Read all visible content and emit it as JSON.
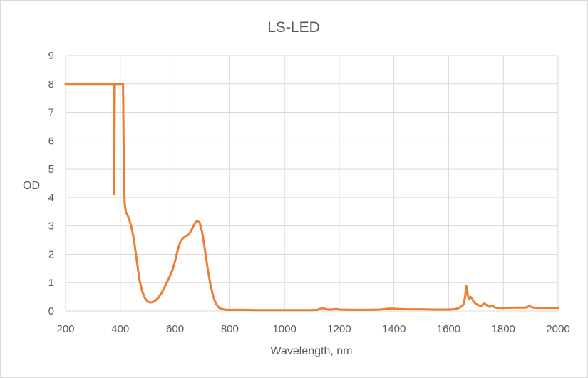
{
  "chart_data": {
    "type": "line",
    "title": "LS-LED",
    "xlabel": "Wavelength, nm",
    "ylabel": "OD",
    "xlim": [
      200,
      2000
    ],
    "ylim": [
      0,
      9
    ],
    "x_ticks": [
      200,
      400,
      600,
      800,
      1000,
      1200,
      1400,
      1600,
      1800,
      2000
    ],
    "y_ticks": [
      0,
      1,
      2,
      3,
      4,
      5,
      6,
      7,
      8,
      9
    ],
    "grid": true,
    "legend": "none",
    "line_color": "#ED7D31",
    "grid_color": "#D9D9D9",
    "series": [
      {
        "x": [
          200,
          370,
          375,
          376,
          377,
          378,
          379,
          380,
          381,
          383,
          385,
          390,
          400,
          405,
          408,
          410,
          412,
          414,
          416,
          420,
          430,
          440,
          450,
          460,
          470,
          480,
          490,
          500,
          510,
          520,
          530,
          540,
          550,
          560,
          570,
          580,
          590,
          600,
          610,
          620,
          630,
          640,
          650,
          660,
          670,
          680,
          690,
          700,
          710,
          720,
          730,
          740,
          750,
          760,
          770,
          780,
          790,
          800,
          820,
          850,
          900,
          950,
          1000,
          1050,
          1100,
          1120,
          1130,
          1140,
          1150,
          1160,
          1170,
          1180,
          1190,
          1200,
          1250,
          1300,
          1350,
          1380,
          1400,
          1420,
          1450,
          1500,
          1550,
          1600,
          1620,
          1630,
          1640,
          1650,
          1655,
          1660,
          1665,
          1668,
          1670,
          1675,
          1680,
          1685,
          1690,
          1695,
          1700,
          1710,
          1720,
          1730,
          1740,
          1750,
          1760,
          1770,
          1780,
          1800,
          1850,
          1880,
          1890,
          1895,
          1900,
          1910,
          1920,
          1950,
          2000
        ],
        "y": [
          8,
          8,
          8,
          7.9,
          6.5,
          4.1,
          6.5,
          7.9,
          8,
          8,
          8,
          8,
          8,
          8,
          8,
          8,
          6.0,
          4.5,
          3.8,
          3.5,
          3.3,
          3.0,
          2.5,
          1.8,
          1.1,
          0.7,
          0.45,
          0.33,
          0.3,
          0.32,
          0.38,
          0.48,
          0.62,
          0.8,
          1.0,
          1.2,
          1.42,
          1.75,
          2.15,
          2.45,
          2.58,
          2.63,
          2.7,
          2.85,
          3.05,
          3.18,
          3.12,
          2.75,
          2.1,
          1.45,
          0.9,
          0.5,
          0.25,
          0.12,
          0.07,
          0.05,
          0.04,
          0.04,
          0.04,
          0.04,
          0.03,
          0.03,
          0.03,
          0.03,
          0.03,
          0.04,
          0.08,
          0.1,
          0.07,
          0.05,
          0.05,
          0.06,
          0.07,
          0.05,
          0.04,
          0.04,
          0.05,
          0.08,
          0.08,
          0.07,
          0.06,
          0.06,
          0.05,
          0.05,
          0.06,
          0.08,
          0.12,
          0.18,
          0.25,
          0.5,
          0.88,
          0.75,
          0.55,
          0.42,
          0.5,
          0.45,
          0.35,
          0.3,
          0.25,
          0.2,
          0.18,
          0.27,
          0.2,
          0.14,
          0.18,
          0.12,
          0.11,
          0.11,
          0.12,
          0.12,
          0.14,
          0.19,
          0.15,
          0.12,
          0.11,
          0.11,
          0.11
        ]
      }
    ]
  }
}
